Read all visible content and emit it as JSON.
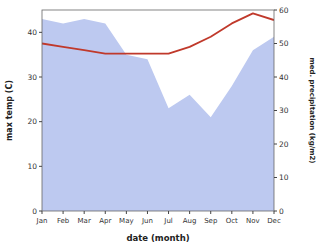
{
  "chart_data": {
    "type": "area",
    "xlabel": "date (month)",
    "ylabel": "max temp (C)",
    "y2label": "med. precipitation (kg/m2)",
    "categories": [
      "Jan",
      "Feb",
      "Mar",
      "Apr",
      "May",
      "Jun",
      "Jul",
      "Aug",
      "Sep",
      "Oct",
      "Nov",
      "Dec"
    ],
    "series": [
      {
        "type": "area",
        "color": "#bdc9f0",
        "values": [
          43,
          42,
          43,
          42,
          35,
          34,
          23,
          26,
          21,
          28,
          36,
          39
        ]
      },
      {
        "type": "line",
        "color": "#c0392b",
        "axis": "y2",
        "values": [
          50,
          49,
          48,
          47,
          47,
          47,
          47,
          49,
          52,
          56,
          59,
          57
        ]
      }
    ],
    "ylim": [
      0,
      45
    ],
    "yticks": [
      0,
      10,
      20,
      30,
      40
    ],
    "y2lim": [
      0,
      60
    ],
    "y2ticks": [
      0,
      10,
      20,
      30,
      40,
      50,
      60
    ],
    "grid": false
  }
}
